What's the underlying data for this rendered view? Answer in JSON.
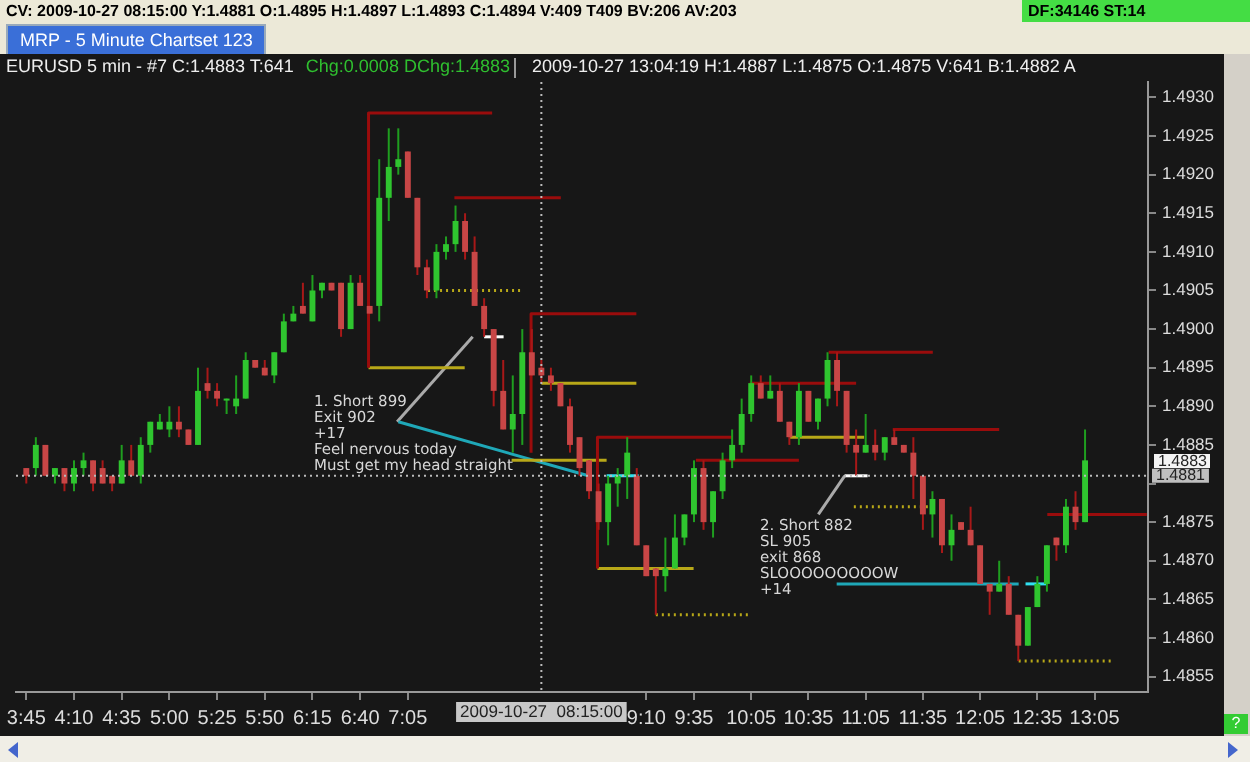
{
  "chart_data": {
    "type": "candlestick",
    "title": "EURUSD  5 min  - #7  C:1.4883  T:641",
    "subtitle": "2009-10-27  13:04:19  H:1.4887  L:1.4875  O:1.4875  V:641  B:1.4882  A",
    "x": [
      3.75,
      3.8333,
      3.9167,
      4,
      4.0833,
      4.1667,
      4.25,
      4.3333,
      4.4167,
      4.5,
      4.5833,
      4.6667,
      4.75,
      4.8333,
      4.9167,
      5,
      5.0833,
      5.1667,
      5.25,
      5.3333,
      5.4167,
      5.5,
      5.5833,
      5.6667,
      5.75,
      5.8333,
      5.9167,
      6,
      6.0833,
      6.1667,
      6.25,
      6.3333,
      6.4167,
      6.5,
      6.5833,
      6.6667,
      6.75,
      6.8333,
      6.9167,
      7,
      7.0833,
      7.1667,
      7.25,
      7.3333,
      7.4167,
      7.5,
      7.5833,
      7.6667,
      7.75,
      7.8333,
      7.9167,
      8,
      8.0833,
      8.1667,
      8.25,
      8.3333,
      8.4167,
      8.5,
      8.5833,
      8.6667,
      8.75,
      8.8333,
      8.9167,
      9,
      9.0833,
      9.1667,
      9.25,
      9.3333,
      9.4167,
      9.5,
      9.5833,
      9.6667,
      9.75,
      9.8333,
      9.9167,
      10,
      10.0833,
      10.1667,
      10.25,
      10.3333,
      10.4167,
      10.5,
      10.5833,
      10.6667,
      10.75,
      10.8333,
      10.9167,
      11,
      11.0833,
      11.1667,
      11.25,
      11.3333,
      11.4167,
      11.5,
      11.5833,
      11.6667,
      11.75,
      11.8333,
      11.9167,
      12,
      12.0833,
      12.1667,
      12.25,
      12.3333,
      12.4167,
      12.5,
      12.5833,
      12.6667,
      12.75,
      12.8333,
      12.9167,
      13
    ],
    "ohlc": [
      [
        1.4882,
        1.4882,
        1.488,
        1.4881
      ],
      [
        1.4882,
        1.4886,
        1.4881,
        1.4885
      ],
      [
        1.4885,
        1.4885,
        1.4881,
        1.4881
      ],
      [
        1.4881,
        1.4882,
        1.488,
        1.4882
      ],
      [
        1.4882,
        1.4882,
        1.4879,
        1.488
      ],
      [
        1.488,
        1.4883,
        1.4879,
        1.4882
      ],
      [
        1.4882,
        1.4884,
        1.4881,
        1.4883
      ],
      [
        1.4883,
        1.4883,
        1.4879,
        1.488
      ],
      [
        1.4882,
        1.4883,
        1.488,
        1.488
      ],
      [
        1.4881,
        1.4881,
        1.4879,
        1.488
      ],
      [
        1.488,
        1.4885,
        1.488,
        1.4883
      ],
      [
        1.4883,
        1.4885,
        1.4881,
        1.4881
      ],
      [
        1.4881,
        1.4886,
        1.488,
        1.4885
      ],
      [
        1.4885,
        1.4888,
        1.4884,
        1.4888
      ],
      [
        1.4887,
        1.4889,
        1.4887,
        1.4888
      ],
      [
        1.4887,
        1.489,
        1.4886,
        1.4888
      ],
      [
        1.4888,
        1.489,
        1.4886,
        1.4887
      ],
      [
        1.4887,
        1.4887,
        1.4885,
        1.4885
      ],
      [
        1.4885,
        1.4895,
        1.4885,
        1.4892
      ],
      [
        1.4893,
        1.4895,
        1.4891,
        1.4892
      ],
      [
        1.4892,
        1.4893,
        1.489,
        1.4891
      ],
      [
        1.4891,
        1.4891,
        1.4889,
        1.4891
      ],
      [
        1.489,
        1.4894,
        1.4889,
        1.4891
      ],
      [
        1.4891,
        1.4897,
        1.4891,
        1.4896
      ],
      [
        1.4896,
        1.4896,
        1.4895,
        1.4895
      ],
      [
        1.4895,
        1.4896,
        1.4894,
        1.4894
      ],
      [
        1.4894,
        1.4897,
        1.4893,
        1.4897
      ],
      [
        1.4897,
        1.4902,
        1.4897,
        1.4901
      ],
      [
        1.4901,
        1.4903,
        1.4901,
        1.4902
      ],
      [
        1.4903,
        1.4906,
        1.4902,
        1.4902
      ],
      [
        1.4901,
        1.4907,
        1.4901,
        1.4905
      ],
      [
        1.4905,
        1.4906,
        1.4904,
        1.4906
      ],
      [
        1.4906,
        1.4906,
        1.4905,
        1.4905
      ],
      [
        1.4906,
        1.4906,
        1.4899,
        1.49
      ],
      [
        1.49,
        1.4907,
        1.49,
        1.4906
      ],
      [
        1.4906,
        1.4907,
        1.4903,
        1.4903
      ],
      [
        1.4903,
        1.4903,
        1.4902,
        1.4902
      ],
      [
        1.4903,
        1.4922,
        1.4901,
        1.4917
      ],
      [
        1.4917,
        1.4926,
        1.4914,
        1.4921
      ],
      [
        1.4921,
        1.4926,
        1.492,
        1.4922
      ],
      [
        1.4923,
        1.4923,
        1.4917,
        1.4917
      ],
      [
        1.4917,
        1.4917,
        1.4907,
        1.4908
      ],
      [
        1.4908,
        1.4909,
        1.4904,
        1.4905
      ],
      [
        1.4905,
        1.4911,
        1.4904,
        1.491
      ],
      [
        1.491,
        1.4912,
        1.4909,
        1.4911
      ],
      [
        1.4911,
        1.4916,
        1.491,
        1.4914
      ],
      [
        1.4914,
        1.4915,
        1.4909,
        1.491
      ],
      [
        1.491,
        1.4912,
        1.4903,
        1.4903
      ],
      [
        1.4903,
        1.4904,
        1.4899,
        1.49
      ],
      [
        1.49,
        1.49,
        1.489,
        1.4892
      ],
      [
        1.4892,
        1.4896,
        1.4887,
        1.4887
      ],
      [
        1.4887,
        1.4894,
        1.4884,
        1.4889
      ],
      [
        1.4889,
        1.49,
        1.4885,
        1.4897
      ],
      [
        1.4897,
        1.49,
        1.4894,
        1.4894
      ],
      [
        1.4895,
        1.4896,
        1.4893,
        1.4894
      ],
      [
        1.4894,
        1.4895,
        1.4892,
        1.4893
      ],
      [
        1.4893,
        1.4893,
        1.489,
        1.489
      ],
      [
        1.489,
        1.4891,
        1.4884,
        1.4885
      ],
      [
        1.4886,
        1.4886,
        1.4881,
        1.4882
      ],
      [
        1.4883,
        1.4883,
        1.4878,
        1.4879
      ],
      [
        1.4879,
        1.488,
        1.4874,
        1.4875
      ],
      [
        1.4875,
        1.4881,
        1.4872,
        1.488
      ],
      [
        1.488,
        1.4882,
        1.4877,
        1.4881
      ],
      [
        1.4881,
        1.4886,
        1.4878,
        1.4884
      ],
      [
        1.4881,
        1.4882,
        1.4872,
        1.4872
      ],
      [
        1.4872,
        1.4872,
        1.4868,
        1.4868
      ],
      [
        1.4869,
        1.4869,
        1.4863,
        1.4868
      ],
      [
        1.4868,
        1.4873,
        1.4866,
        1.4869
      ],
      [
        1.4869,
        1.4876,
        1.4869,
        1.4873
      ],
      [
        1.4873,
        1.4876,
        1.4872,
        1.4876
      ],
      [
        1.4876,
        1.4883,
        1.4875,
        1.4882
      ],
      [
        1.4882,
        1.4883,
        1.4874,
        1.4875
      ],
      [
        1.4875,
        1.4879,
        1.4873,
        1.4879
      ],
      [
        1.4879,
        1.4884,
        1.4878,
        1.4883
      ],
      [
        1.4883,
        1.4887,
        1.4882,
        1.4885
      ],
      [
        1.4885,
        1.4891,
        1.4884,
        1.4889
      ],
      [
        1.4889,
        1.4894,
        1.4888,
        1.4893
      ],
      [
        1.4893,
        1.4894,
        1.4891,
        1.4891
      ],
      [
        1.4891,
        1.4894,
        1.4891,
        1.4892
      ],
      [
        1.4892,
        1.4893,
        1.4888,
        1.4888
      ],
      [
        1.4888,
        1.4888,
        1.4885,
        1.4886
      ],
      [
        1.4886,
        1.4893,
        1.4885,
        1.4892
      ],
      [
        1.4892,
        1.4892,
        1.4888,
        1.4888
      ],
      [
        1.4888,
        1.4891,
        1.4887,
        1.4891
      ],
      [
        1.4891,
        1.4897,
        1.489,
        1.4896
      ],
      [
        1.4896,
        1.4897,
        1.489,
        1.4892
      ],
      [
        1.4892,
        1.4892,
        1.4884,
        1.4885
      ],
      [
        1.4885,
        1.4887,
        1.4881,
        1.4884
      ],
      [
        1.4884,
        1.4889,
        1.4884,
        1.4885
      ],
      [
        1.4885,
        1.4887,
        1.4883,
        1.4884
      ],
      [
        1.4884,
        1.4886,
        1.4883,
        1.4886
      ],
      [
        1.4886,
        1.4887,
        1.4885,
        1.4885
      ],
      [
        1.4885,
        1.4885,
        1.4884,
        1.4884
      ],
      [
        1.4884,
        1.4886,
        1.4878,
        1.4881
      ],
      [
        1.4881,
        1.4881,
        1.4874,
        1.4876
      ],
      [
        1.4876,
        1.4879,
        1.4873,
        1.4878
      ],
      [
        1.4878,
        1.4878,
        1.4871,
        1.4872
      ],
      [
        1.4872,
        1.4876,
        1.487,
        1.4874
      ],
      [
        1.4875,
        1.4875,
        1.4874,
        1.4874
      ],
      [
        1.4874,
        1.4877,
        1.4872,
        1.4872
      ],
      [
        1.4872,
        1.4872,
        1.4867,
        1.4867
      ],
      [
        1.4867,
        1.4867,
        1.4863,
        1.4866
      ],
      [
        1.4866,
        1.487,
        1.4866,
        1.4867
      ],
      [
        1.4867,
        1.4868,
        1.4863,
        1.4863
      ],
      [
        1.4863,
        1.4863,
        1.4857,
        1.4859
      ],
      [
        1.4859,
        1.4864,
        1.4859,
        1.4864
      ],
      [
        1.4864,
        1.4868,
        1.4864,
        1.4867
      ],
      [
        1.4867,
        1.4872,
        1.4866,
        1.4872
      ],
      [
        1.4873,
        1.4873,
        1.487,
        1.4872
      ],
      [
        1.4872,
        1.4878,
        1.4871,
        1.4877
      ],
      [
        1.4877,
        1.4879,
        1.4874,
        1.4875
      ],
      [
        1.4875,
        1.4887,
        1.4875,
        1.4883
      ]
    ],
    "series": [
      {
        "type": "line",
        "color": "#9a0c0c",
        "x": [
          6.74,
          6.74,
          7.82
        ],
        "values": [
          1.4895,
          1.4928,
          1.4928
        ]
      },
      {
        "type": "line",
        "color": "#9a0c0c",
        "x": [
          7.49,
          8.42
        ],
        "values": [
          1.4917,
          1.4917
        ]
      },
      {
        "type": "line",
        "color": "#9a0c0c",
        "x": [
          8.16,
          8.16,
          9.08
        ],
        "values": [
          1.4884,
          1.4902,
          1.4902
        ]
      },
      {
        "type": "line",
        "color": "#9a0c0c",
        "x": [
          8.74,
          8.74,
          9.92
        ],
        "values": [
          1.4869,
          1.4886,
          1.4886
        ]
      },
      {
        "type": "line",
        "color": "#9a0c0c",
        "x": [
          9.6,
          10.5
        ],
        "values": [
          1.4883,
          1.4883
        ]
      },
      {
        "type": "line",
        "color": "#9a0c0c",
        "x": [
          10.07,
          11.0
        ],
        "values": [
          1.4893,
          1.4893
        ]
      },
      {
        "type": "line",
        "color": "#9a0c0c",
        "x": [
          10.76,
          11.67
        ],
        "values": [
          1.4897,
          1.4897
        ]
      },
      {
        "type": "line",
        "color": "#9a0c0c",
        "x": [
          11.32,
          12.25
        ],
        "values": [
          1.4887,
          1.4887
        ]
      },
      {
        "type": "line",
        "color": "#9a0c0c",
        "x": [
          12.67,
          13.54
        ],
        "values": [
          1.4876,
          1.4876
        ]
      },
      {
        "type": "line",
        "color": "#b8a818",
        "x": [
          6.74,
          7.58
        ],
        "values": [
          1.4895,
          1.4895
        ]
      },
      {
        "type": "line",
        "color": "#b8a818",
        "line_style": "dotted",
        "x": [
          7.26,
          8.08
        ],
        "values": [
          1.4905,
          1.4905
        ]
      },
      {
        "type": "line",
        "color": "#b8a818",
        "x": [
          8.25,
          9.08
        ],
        "values": [
          1.4893,
          1.4893
        ]
      },
      {
        "type": "line",
        "color": "#b8a818",
        "x": [
          7.99,
          8.82
        ],
        "values": [
          1.4883,
          1.4883
        ]
      },
      {
        "type": "line",
        "color": "#b8a818",
        "x": [
          8.74,
          9.58
        ],
        "values": [
          1.4869,
          1.4869
        ]
      },
      {
        "type": "line",
        "color": "#b8a818",
        "line_style": "dotted",
        "x": [
          9.25,
          10.07
        ],
        "values": [
          1.4863,
          1.4863
        ]
      },
      {
        "type": "line",
        "color": "#b8a818",
        "x": [
          10.42,
          11.07
        ],
        "values": [
          1.4886,
          1.4886
        ]
      },
      {
        "type": "line",
        "color": "#b8a818",
        "line_style": "dotted",
        "x": [
          10.98,
          11.67
        ],
        "values": [
          1.4877,
          1.4877
        ]
      },
      {
        "type": "line",
        "color": "#b8a818",
        "line_style": "dotted",
        "x": [
          12.42,
          13.25
        ],
        "values": [
          1.4857,
          1.4857
        ]
      },
      {
        "type": "line",
        "color": "#1fa8b8",
        "x": [
          7.0,
          8.66
        ],
        "values": [
          1.4888,
          1.4881
        ]
      },
      {
        "type": "line",
        "color": "#30e0f0",
        "x": [
          8.82,
          9.1
        ],
        "values": [
          1.4881,
          1.4881
        ]
      },
      {
        "type": "line",
        "color": "#1fa8b8",
        "x": [
          10.83,
          12.42
        ],
        "values": [
          1.4867,
          1.4867
        ]
      },
      {
        "type": "line",
        "color": "#30e0f0",
        "x": [
          12.48,
          12.67
        ],
        "values": [
          1.4867,
          1.4867
        ]
      },
      {
        "type": "line",
        "color": "#aaaaaa",
        "x": [
          6.99,
          7.65
        ],
        "values": [
          1.4888,
          1.4899
        ]
      },
      {
        "type": "line",
        "color": "#ffffff",
        "x": [
          7.75,
          7.92
        ],
        "values": [
          1.4899,
          1.4899
        ]
      },
      {
        "type": "line",
        "color": "#aaaaaa",
        "x": [
          10.67,
          10.9
        ],
        "values": [
          1.4876,
          1.4881
        ]
      },
      {
        "type": "line",
        "color": "#ffffff",
        "x": [
          10.9,
          11.1
        ],
        "values": [
          1.4881,
          1.4881
        ]
      }
    ],
    "xlim": [
      3.66,
      13.55
    ],
    "xticks": [
      {
        "value": 3.75,
        "label": "3:45"
      },
      {
        "value": 4.1667,
        "label": "4:10"
      },
      {
        "value": 4.5833,
        "label": "4:35"
      },
      {
        "value": 5,
        "label": "5:00"
      },
      {
        "value": 5.4167,
        "label": "5:25"
      },
      {
        "value": 5.8333,
        "label": "5:50"
      },
      {
        "value": 6.25,
        "label": "6:15"
      },
      {
        "value": 6.6667,
        "label": "6:40"
      },
      {
        "value": 7.0833,
        "label": "7:05"
      },
      {
        "value": 9.1667,
        "label": "9:10"
      },
      {
        "value": 9.5833,
        "label": "9:35"
      },
      {
        "value": 10.0833,
        "label": "10:05"
      },
      {
        "value": 10.5833,
        "label": "10:35"
      },
      {
        "value": 11.0833,
        "label": "11:05"
      },
      {
        "value": 11.5833,
        "label": "11:35"
      },
      {
        "value": 12.0833,
        "label": "12:05"
      },
      {
        "value": 12.5833,
        "label": "12:35"
      },
      {
        "value": 13.0833,
        "label": "13:05"
      }
    ],
    "ylim": [
      1.4853,
      1.4932
    ],
    "yticks": [
      {
        "value": 1.4855,
        "label": "1.4855"
      },
      {
        "value": 1.486,
        "label": "1.4860"
      },
      {
        "value": 1.4865,
        "label": "1.4865"
      },
      {
        "value": 1.487,
        "label": "1.4870"
      },
      {
        "value": 1.4875,
        "label": "1.4875"
      },
      {
        "value": 1.488,
        "label": null
      },
      {
        "value": 1.4885,
        "label": "1.4885"
      },
      {
        "value": 1.489,
        "label": "1.4890"
      },
      {
        "value": 1.4895,
        "label": "1.4895"
      },
      {
        "value": 1.49,
        "label": "1.4900"
      },
      {
        "value": 1.4905,
        "label": "1.4905"
      },
      {
        "value": 1.491,
        "label": "1.4910"
      },
      {
        "value": 1.4915,
        "label": "1.4915"
      },
      {
        "value": 1.492,
        "label": "1.4920"
      },
      {
        "value": 1.4925,
        "label": "1.4925"
      },
      {
        "value": 1.493,
        "label": "1.4930"
      }
    ],
    "ref_lines": [
      {
        "axis": "x",
        "value": 8.25,
        "label": "2009-10-27  08:15:00",
        "color": "#bbbbbb",
        "line_style": "dotted"
      },
      {
        "axis": "y",
        "value": 1.4881,
        "label": "1.4881",
        "color": "#bbbbbb",
        "line_style": "dotted"
      }
    ],
    "annotations": [
      "CV: 2009-10-27 08:15:00 Y:1.4881 O:1.4895 H:1.4897 L:1.4893 C:1.4894 V:409 T409 BV:206 AV:203",
      "DF:34146 ST:14",
      "MRP - 5 Minute Chartset 123",
      "Chg:0.0008  DChg:1.4883",
      "1. Short 899\nExit 902\n+17\nFeel nervous today\nMust get my head straight",
      "2. Short 882\nSL 905\nexit 868\nSLOOOOOOOOOW\n+14",
      "1.4883",
      "?"
    ],
    "legend": false,
    "marker": "none"
  }
}
